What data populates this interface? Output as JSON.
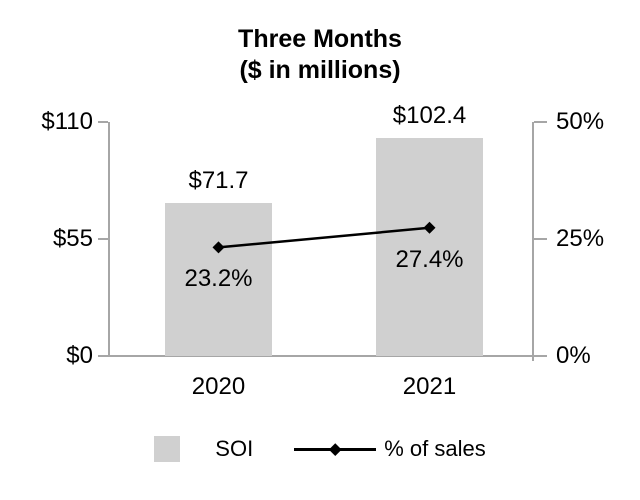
{
  "chart_data": {
    "type": "bar",
    "subtype": "bar-line-combo",
    "title": "Three Months",
    "subtitle": "($ in millions)",
    "categories": [
      "2020",
      "2021"
    ],
    "series": [
      {
        "name": "SOI",
        "type": "bar",
        "axis": "left",
        "values": [
          71.7,
          102.4
        ],
        "data_labels": [
          "$71.7",
          "$102.4"
        ],
        "color": "#d0d0d0"
      },
      {
        "name": "% of sales",
        "type": "line",
        "axis": "right",
        "values": [
          23.2,
          27.4
        ],
        "data_labels": [
          "23.2%",
          "27.4%"
        ],
        "color": "#000000",
        "marker": "diamond"
      }
    ],
    "left_axis": {
      "tick_labels": [
        "$110",
        "$55",
        "$0"
      ],
      "tick_values": [
        110,
        55,
        0
      ],
      "min": 0,
      "max": 110
    },
    "right_axis": {
      "tick_labels": [
        "50%",
        "25%",
        "0%"
      ],
      "tick_values": [
        50,
        25,
        0
      ],
      "min": 0,
      "max": 50
    },
    "legend": {
      "position": "bottom",
      "entries": [
        {
          "label": "SOI",
          "swatch": "gray-square"
        },
        {
          "label": "% of sales",
          "swatch": "line-diamond"
        }
      ]
    },
    "grid": false,
    "axis_color": "#a6a6a6",
    "background": "#ffffff"
  }
}
